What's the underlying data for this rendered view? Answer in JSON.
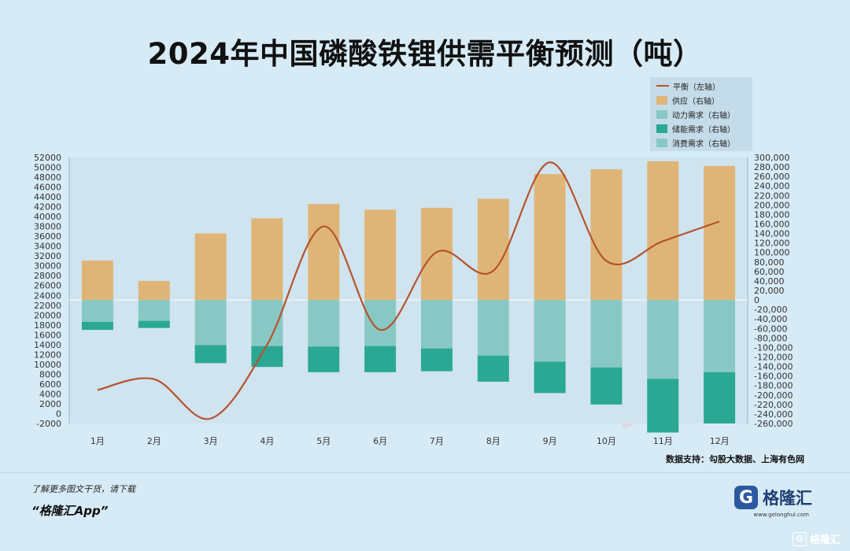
{
  "title": "2024年中国磷酸铁锂供需平衡预测（吨）",
  "legend": {
    "balance": "平衡（左轴）",
    "supply": "供应（右轴）",
    "power": "动力需求（右轴）",
    "storage": "储能需求（右轴）",
    "consumer": "消费需求（右轴）"
  },
  "source": "数据支持：勾股大数据、上海有色网",
  "footer": {
    "line1": "了解更多图文干货，请下载",
    "line2": "“格隆汇App”"
  },
  "brand": {
    "icon": "G",
    "name": "格隆汇",
    "url": "www.gelonghui.com"
  },
  "colors": {
    "supply": "#dfb577",
    "power": "#88c8c4",
    "storage": "#2aa894",
    "balance": "#b5532e"
  },
  "chart_data": {
    "type": "bar",
    "categories": [
      "1月",
      "2月",
      "3月",
      "4月",
      "5月",
      "6月",
      "7月",
      "8月",
      "9月",
      "10月",
      "11月",
      "12月"
    ],
    "left_axis": {
      "min": -2000,
      "max": 52000,
      "step": 2000
    },
    "right_axis": {
      "min": -260000,
      "max": 300000,
      "step": 20000
    },
    "zero_right": 0,
    "series": [
      {
        "name": "供应（右轴）",
        "axis": "right",
        "values": [
          83000,
          40000,
          140000,
          172000,
          202000,
          190000,
          194000,
          213000,
          265000,
          275000,
          292000,
          282000
        ]
      },
      {
        "name": "动力需求（右轴）",
        "axis": "right",
        "values": [
          -46000,
          -44000,
          -95000,
          -97000,
          -98000,
          -97000,
          -102000,
          -117000,
          -130000,
          -142000,
          -166000,
          -152000
        ]
      },
      {
        "name": "储能需求（右轴）",
        "axis": "right",
        "values": [
          -17000,
          -15000,
          -38000,
          -44000,
          -54000,
          -55000,
          -48000,
          -55000,
          -66000,
          -78000,
          -113000,
          -108000
        ]
      },
      {
        "name": "平衡（左轴）",
        "axis": "left",
        "values": [
          4800,
          7000,
          -1000,
          14000,
          38000,
          17000,
          32800,
          29000,
          51000,
          31000,
          35000,
          39000
        ]
      }
    ],
    "legend_position": "top-right"
  }
}
